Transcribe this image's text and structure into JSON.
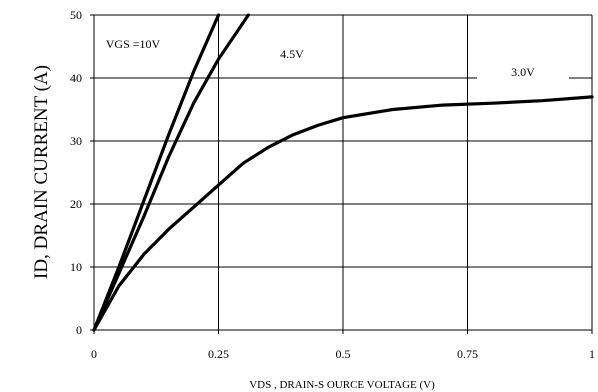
{
  "chart_data": {
    "type": "line",
    "title": "",
    "xlabel": "VDS , DRAIN-S OURCE VOLTAGE (V)",
    "ylabel": "ID, DRAIN CURRENT (A)",
    "xlim": [
      0,
      1
    ],
    "ylim": [
      0,
      50
    ],
    "x_ticks": [
      0,
      0.25,
      0.5,
      0.75,
      1
    ],
    "x_tick_labels": [
      "0",
      "0.25",
      "0.5",
      "0.75",
      "1"
    ],
    "y_ticks": [
      0,
      10,
      20,
      30,
      40,
      50
    ],
    "y_tick_labels": [
      "0",
      "10",
      "20",
      "30",
      "40",
      "50"
    ],
    "grid": true,
    "series": [
      {
        "name": "VGS =10V",
        "points": [
          [
            0,
            0
          ],
          [
            0.05,
            10
          ],
          [
            0.1,
            20.5
          ],
          [
            0.15,
            31
          ],
          [
            0.2,
            41
          ],
          [
            0.25,
            50
          ]
        ]
      },
      {
        "name": "4.5V",
        "points": [
          [
            0,
            0
          ],
          [
            0.05,
            9
          ],
          [
            0.1,
            18
          ],
          [
            0.15,
            27.5
          ],
          [
            0.2,
            36
          ],
          [
            0.25,
            43
          ],
          [
            0.31,
            50
          ]
        ]
      },
      {
        "name": "3.0V",
        "points": [
          [
            0,
            0
          ],
          [
            0.05,
            7
          ],
          [
            0.1,
            12
          ],
          [
            0.15,
            16
          ],
          [
            0.2,
            19.5
          ],
          [
            0.25,
            23
          ],
          [
            0.3,
            26.5
          ],
          [
            0.35,
            29
          ],
          [
            0.4,
            31
          ],
          [
            0.45,
            32.5
          ],
          [
            0.5,
            33.7
          ],
          [
            0.6,
            35
          ],
          [
            0.7,
            35.7
          ],
          [
            0.8,
            36
          ],
          [
            0.9,
            36.4
          ],
          [
            1.0,
            37
          ]
        ]
      }
    ]
  }
}
